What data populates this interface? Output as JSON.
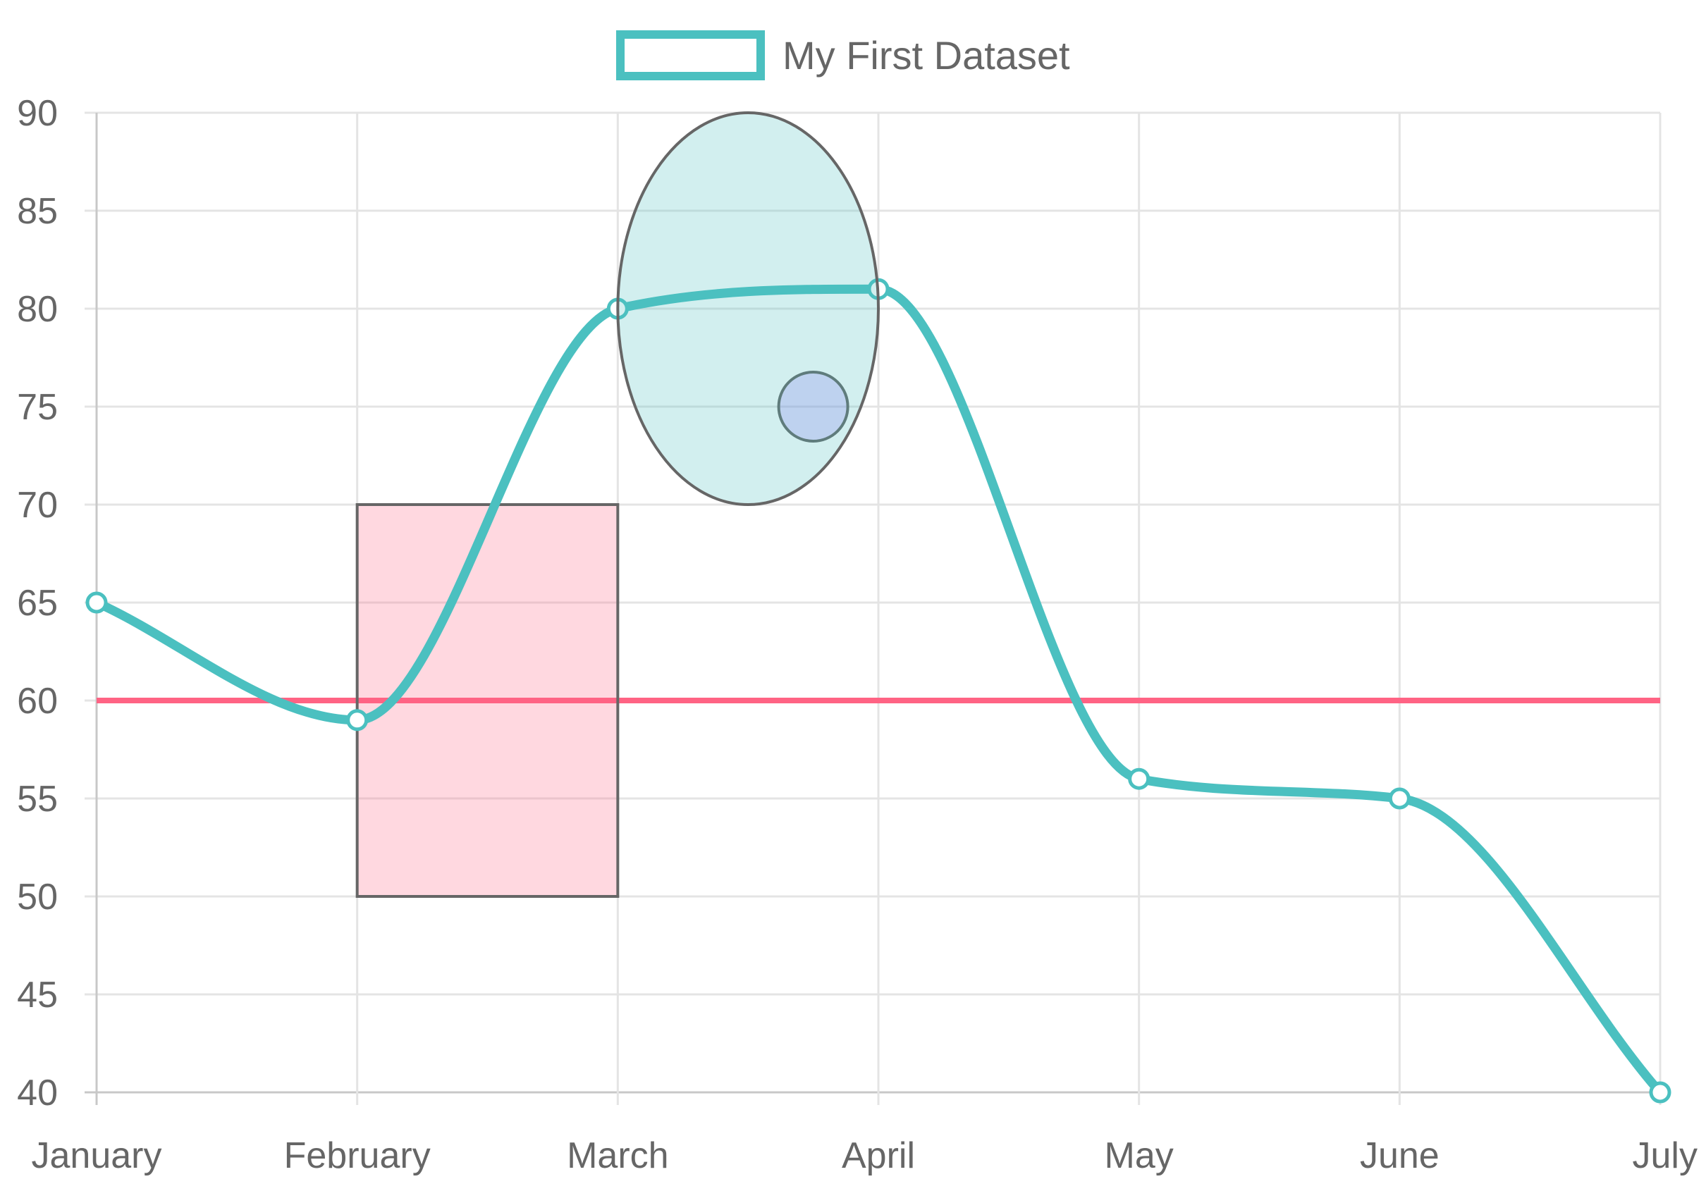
{
  "chart_data": {
    "type": "line",
    "title": "",
    "xlabel": "",
    "ylabel": "",
    "categories": [
      "January",
      "February",
      "March",
      "April",
      "May",
      "June",
      "July"
    ],
    "series": [
      {
        "name": "My First Dataset",
        "values": [
          65,
          59,
          80,
          81,
          56,
          55,
          40
        ],
        "color": "#4bc0c0",
        "curve": "smooth"
      }
    ],
    "ylim": [
      40,
      90
    ],
    "ytick_step": 5,
    "yticks": [
      "40",
      "45",
      "50",
      "55",
      "60",
      "65",
      "70",
      "75",
      "80",
      "85",
      "90"
    ],
    "grid": true,
    "legend": {
      "position": "top-center",
      "label": "My First Dataset"
    },
    "annotations": [
      {
        "type": "line",
        "y": 60,
        "color": "#ff6384"
      },
      {
        "type": "box",
        "x_from": "February",
        "x_to": "March",
        "y_from": 50,
        "y_to": 70,
        "fill": "#ff638440",
        "border": "#666666"
      },
      {
        "type": "point",
        "x": 2.75,
        "y": 75,
        "fill": "#9966ff40",
        "border": "#666666"
      },
      {
        "type": "ellipse",
        "x_from": "March",
        "x_to": "April",
        "y_from": 70,
        "y_to": 90,
        "fill": "#4bc0c040",
        "border": "#666666"
      }
    ]
  }
}
